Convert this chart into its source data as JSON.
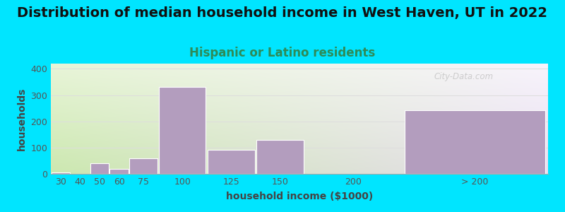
{
  "title": "Distribution of median household income in West Haven, UT in 2022",
  "subtitle": "Hispanic or Latino residents",
  "xlabel": "household income ($1000)",
  "ylabel": "households",
  "bar_values": [
    5,
    0,
    40,
    18,
    60,
    330,
    92,
    130,
    0,
    242
  ],
  "bar_lefts": [
    20,
    30,
    40,
    50,
    60,
    75,
    100,
    125,
    150,
    200
  ],
  "bar_rights": [
    30,
    40,
    50,
    60,
    75,
    100,
    125,
    150,
    200,
    275
  ],
  "bar_color": "#b39dbe",
  "bar_edge_color": "#ffffff",
  "ylim": [
    0,
    420
  ],
  "yticks": [
    0,
    100,
    200,
    300,
    400
  ],
  "xtick_labels": [
    "30",
    "40",
    "50",
    "60",
    "75",
    "100",
    "125",
    "150",
    "200",
    "> 200"
  ],
  "xtick_centers": [
    25,
    35,
    45,
    55,
    67.5,
    87.5,
    112.5,
    137.5,
    175,
    237.5
  ],
  "xlim": [
    20,
    275
  ],
  "bg_outer": "#00e5ff",
  "bg_plot_left_bottom": "#cce8b0",
  "bg_plot_left_top": "#e8f5d8",
  "bg_plot_right_bottom": "#e8ddf0",
  "bg_plot_right_top": "#f8f4fc",
  "title_fontsize": 14,
  "subtitle_fontsize": 12,
  "subtitle_color": "#2e8b57",
  "axis_label_fontsize": 10,
  "tick_fontsize": 9,
  "watermark": "City-Data.com",
  "watermark_color": "#c0c0c0",
  "grid_color": "#dddddd"
}
